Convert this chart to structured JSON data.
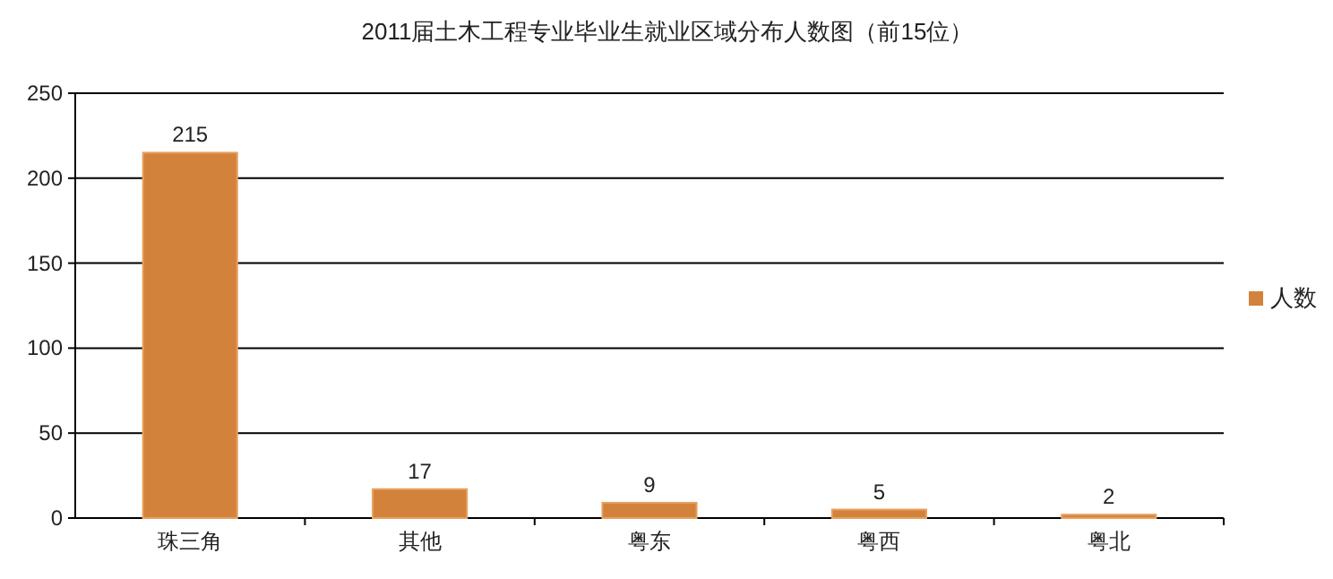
{
  "chart_data": {
    "type": "bar",
    "title": "2011届土木工程专业毕业生就业区域分布人数图（前15位）",
    "categories": [
      "珠三角",
      "其他",
      "粤东",
      "粤西",
      "粤北"
    ],
    "series": [
      {
        "name": "人数",
        "color": "#d2823a",
        "values": [
          215,
          17,
          9,
          5,
          2
        ]
      }
    ],
    "ylim": [
      0,
      250
    ],
    "yticks": [
      0,
      50,
      100,
      150,
      200,
      250
    ],
    "grid": "y",
    "legend": "right",
    "data_labels": true
  }
}
